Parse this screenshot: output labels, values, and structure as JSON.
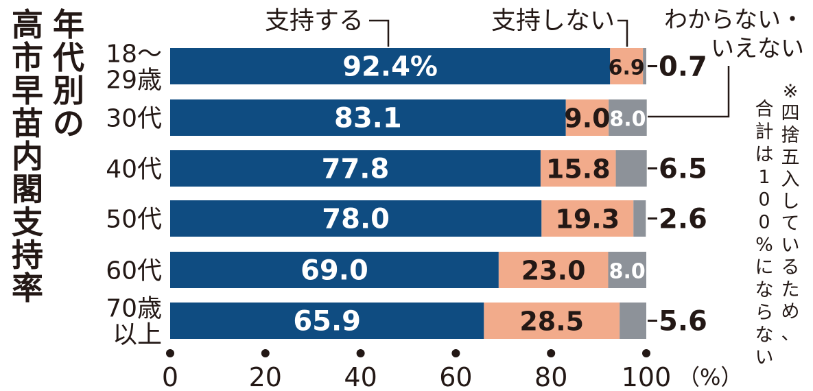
{
  "chart_data": {
    "type": "bar",
    "orientation": "horizontal",
    "stacked": true,
    "title": "年代別の高市早苗内閣支持率",
    "categories": [
      "18〜29歳",
      "30代",
      "40代",
      "50代",
      "60代",
      "70歳以上"
    ],
    "category_lines": [
      [
        "18〜",
        "29歳"
      ],
      [
        "30代"
      ],
      [
        "40代"
      ],
      [
        "50代"
      ],
      [
        "60代"
      ],
      [
        "70歳",
        "以上"
      ]
    ],
    "series": [
      {
        "name": "支持する",
        "values": [
          92.4,
          83.1,
          77.8,
          78.0,
          69.0,
          65.9
        ],
        "color": "#0f4c81"
      },
      {
        "name": "支持しない",
        "values": [
          6.9,
          9.0,
          15.8,
          19.3,
          23.0,
          28.5
        ],
        "color": "#f2ab8b"
      },
      {
        "name": "わからない・いえない",
        "values": [
          0.7,
          8.0,
          6.5,
          2.6,
          8.0,
          5.6
        ],
        "color": "#8d9299"
      }
    ],
    "legend_lines": [
      [
        "支持する"
      ],
      [
        "支持しない"
      ],
      [
        "わからない・",
        "いえない"
      ]
    ],
    "data_labels": [
      [
        "92.4%",
        "6.9",
        "0.7"
      ],
      [
        "83.1",
        "9.0",
        "8.0"
      ],
      [
        "77.8",
        "15.8",
        "6.5"
      ],
      [
        "78.0",
        "19.3",
        "2.6"
      ],
      [
        "69.0",
        "23.0",
        "8.0"
      ],
      [
        "65.9",
        "28.5",
        "5.6"
      ]
    ],
    "xlim": [
      0,
      100
    ],
    "xticks": [
      0,
      20,
      40,
      60,
      80,
      100
    ],
    "xtick_labels": [
      "0",
      "20",
      "40",
      "60",
      "80",
      "100"
    ],
    "x_unit": "（%）",
    "note": "※四捨五入しているため、合計は100%にならない"
  }
}
